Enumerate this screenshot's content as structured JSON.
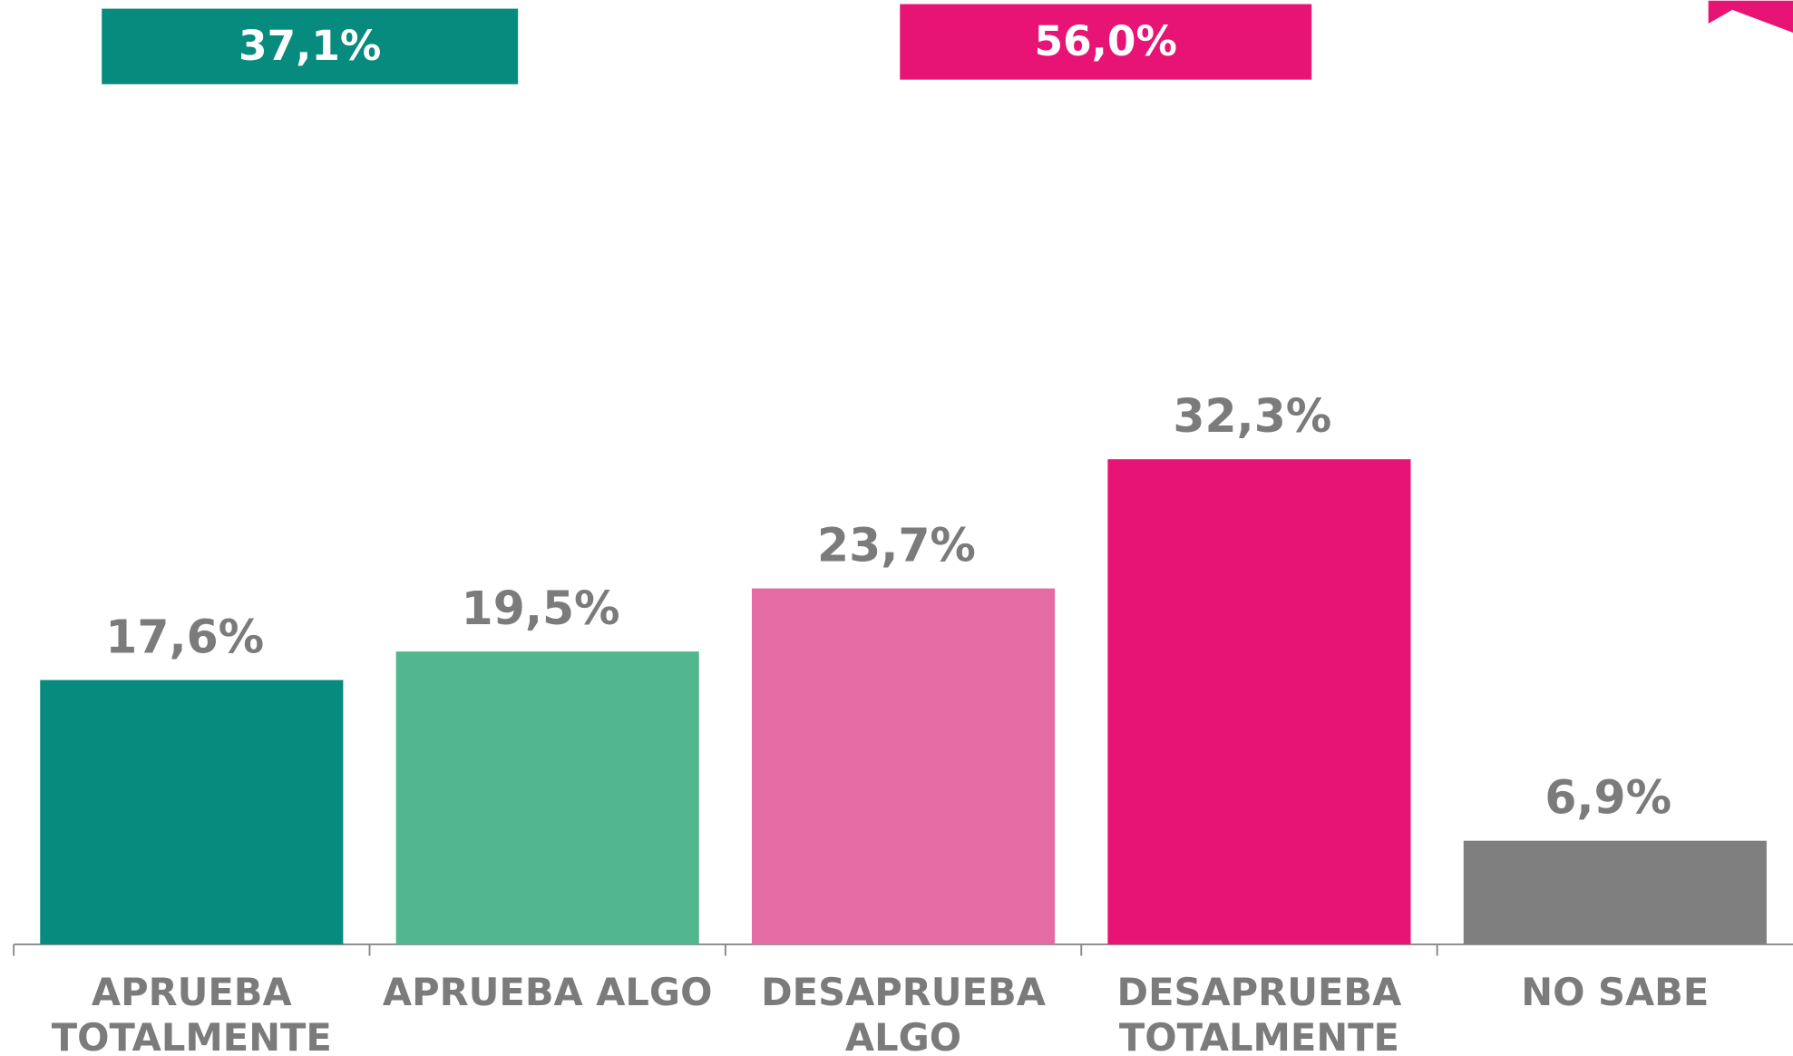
{
  "chart_data": {
    "type": "bar",
    "categories": [
      "APRUEBA TOTALMENTE",
      "APRUEBA ALGO",
      "DESAPRUEBA ALGO",
      "DESAPRUEBA TOTALMENTE",
      "NO SABE"
    ],
    "values": [
      17.6,
      19.5,
      23.7,
      32.3,
      6.9
    ],
    "value_labels": [
      "17,6%",
      "19,5%",
      "23,7%",
      "32,3%",
      "6,9%"
    ],
    "colors": [
      "#068b7e",
      "#52b78f",
      "#e56ba4",
      "#e81475",
      "#7f7f7f"
    ],
    "annotations": [
      {
        "value": 37.1,
        "label": "37,1%",
        "color": "#068b7e"
      },
      {
        "value": 56.0,
        "label": "56,0%",
        "color": "#e81475"
      }
    ]
  }
}
